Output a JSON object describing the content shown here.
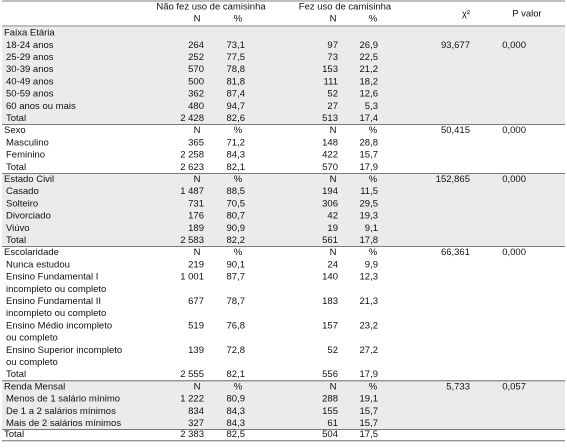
{
  "header": {
    "group1": "Não fez uso de camisinha",
    "group2": "Fez uso de camisinha",
    "chi2": "χ²",
    "p": "P valor",
    "sub": [
      "N",
      "%",
      "N",
      "%"
    ]
  },
  "sections": [
    {
      "title": "Faixa Etária",
      "rows": [
        {
          "label": "18-24 anos",
          "cells": [
            "264",
            "73,1",
            "97",
            "26,9"
          ],
          "chi2": "93,677",
          "p": "0,000"
        },
        {
          "label": "25-29 anos",
          "cells": [
            "252",
            "77,5",
            "73",
            "22,5"
          ]
        },
        {
          "label": "30-39 anos",
          "cells": [
            "570",
            "78,8",
            "153",
            "21,2"
          ]
        },
        {
          "label": "40-49 anos",
          "cells": [
            "500",
            "81,8",
            "111",
            "18,2"
          ]
        },
        {
          "label": "50-59 anos",
          "cells": [
            "362",
            "87,4",
            "52",
            "12,6"
          ]
        },
        {
          "label": "60 anos ou mais",
          "cells": [
            "480",
            "94,7",
            "27",
            "5,3"
          ]
        },
        {
          "label": "Total",
          "cells": [
            "2 428",
            "82,6",
            "513",
            "17,4"
          ]
        }
      ]
    },
    {
      "title": "Sexo",
      "head": [
        "N",
        "%",
        "N",
        "%"
      ],
      "chi2": "50,415",
      "p": "0,000",
      "rows": [
        {
          "label": "Masculino",
          "cells": [
            "365",
            "71,2",
            "148",
            "28,8"
          ]
        },
        {
          "label": "Feminino",
          "cells": [
            "2 258",
            "84,3",
            "422",
            "15,7"
          ]
        },
        {
          "label": "Total",
          "cells": [
            "2 623",
            "82,1",
            "570",
            "17,9"
          ]
        }
      ]
    },
    {
      "title": "Estado Civil",
      "head": [
        "N",
        "%",
        "N",
        "%"
      ],
      "chi2": "152,865",
      "p": "0,000",
      "rows": [
        {
          "label": "Casado",
          "cells": [
            "1 487",
            "88,5",
            "194",
            "11,5"
          ]
        },
        {
          "label": "Solteiro",
          "cells": [
            "731",
            "70,5",
            "306",
            "29,5"
          ]
        },
        {
          "label": "Divorciado",
          "cells": [
            "176",
            "80,7",
            "42",
            "19,3"
          ]
        },
        {
          "label": "Viúvo",
          "cells": [
            "189",
            "90,9",
            "19",
            "9,1"
          ]
        },
        {
          "label": "Total",
          "cells": [
            "2 583",
            "82,2",
            "561",
            "17,8"
          ]
        }
      ]
    },
    {
      "title": "Escolaridade",
      "head": [
        "N",
        "%",
        "N",
        "%"
      ],
      "chi2": "66,361",
      "p": "0,000",
      "rows": [
        {
          "label": "Nunca estudou",
          "cells": [
            "219",
            "90,1",
            "24",
            "9,9"
          ]
        },
        {
          "label": [
            "Ensino Fundamental I",
            "incompleto ou completo"
          ],
          "cells": [
            "1 001",
            "87,7",
            "140",
            "12,3"
          ]
        },
        {
          "label": [
            "Ensino Fundamental II",
            "incompleto ou completo"
          ],
          "cells": [
            "677",
            "78,7",
            "183",
            "21,3"
          ]
        },
        {
          "label": [
            "Ensino Médio incompleto",
            "ou completo"
          ],
          "cells": [
            "519",
            "76,8",
            "157",
            "23,2"
          ]
        },
        {
          "label": [
            "Ensino Superior incompleto",
            "ou completo"
          ],
          "cells": [
            "139",
            "72,8",
            "52",
            "27,2"
          ]
        },
        {
          "label": "Total",
          "cells": [
            "2 555",
            "82,1",
            "556",
            "17,9"
          ]
        }
      ]
    },
    {
      "title": "Renda Mensal",
      "head": [
        "N",
        "%",
        "N",
        "%"
      ],
      "chi2": "5,733",
      "p": "0,057",
      "rows": [
        {
          "label": "Menos de 1 salário mínimo",
          "cells": [
            "1 222",
            "80,9",
            "288",
            "19,1"
          ]
        },
        {
          "label": "De 1 a 2 salários mínimos",
          "cells": [
            "834",
            "84,3",
            "155",
            "15,7"
          ]
        },
        {
          "label": "Mais de 2 salários mínimos",
          "cells": [
            "327",
            "84,3",
            "61",
            "15,7"
          ]
        }
      ]
    }
  ],
  "total": {
    "label": "Total",
    "cells": [
      "2 383",
      "82,5",
      "504",
      "17,5"
    ]
  }
}
